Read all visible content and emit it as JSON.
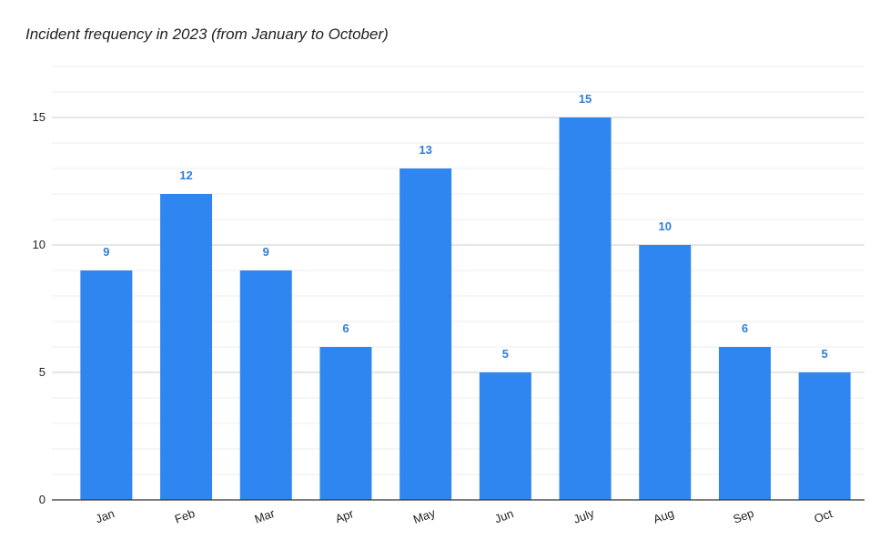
{
  "chart_data": {
    "type": "bar",
    "title": "Incident frequency in 2023 (from January to October)",
    "xlabel": "",
    "ylabel": "",
    "categories": [
      "Jan",
      "Feb",
      "Mar",
      "Apr",
      "May",
      "Jun",
      "July",
      "Aug",
      "Sep",
      "Oct"
    ],
    "values": [
      9,
      12,
      9,
      6,
      13,
      5,
      15,
      10,
      6,
      5
    ],
    "ylim": [
      0,
      17
    ],
    "yticks": [
      0,
      5,
      10,
      15
    ],
    "grid": true,
    "minor_grid_step": 1,
    "legend": "none",
    "data_labels": true,
    "colors": {
      "bar": "#2f86f0",
      "label": "#2f7fd9",
      "grid_major": "#cccccc",
      "grid_minor": "#ececec",
      "axis": "#333333"
    }
  }
}
